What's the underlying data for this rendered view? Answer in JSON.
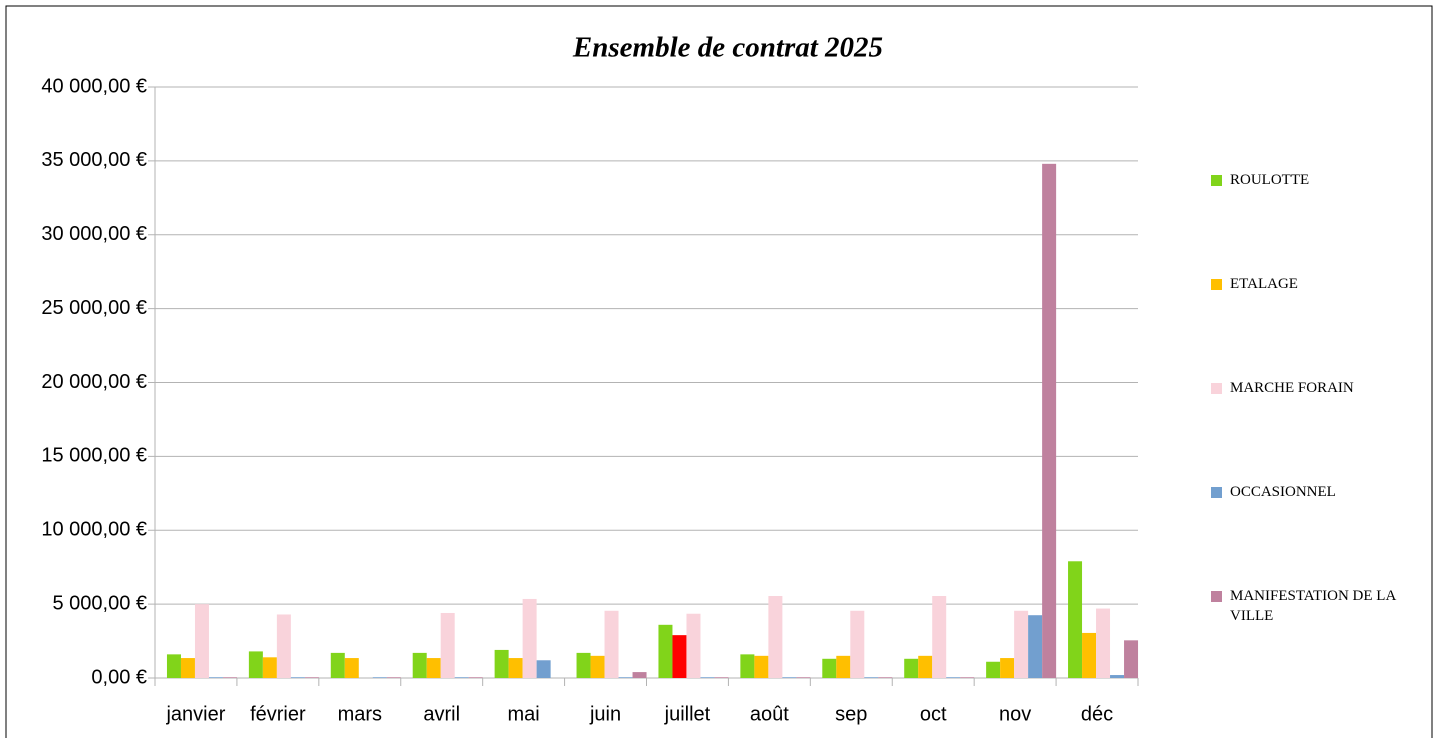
{
  "chart_data": {
    "type": "bar",
    "title": "Ensemble de contrat 2025",
    "categories": [
      "janvier",
      "février",
      "mars",
      "avril",
      "mai",
      "juin",
      "juillet",
      "août",
      "sep",
      "oct",
      "nov",
      "déc"
    ],
    "series": [
      {
        "name": "ROULOTTE",
        "color": "#81d41a",
        "values": [
          1600,
          1800,
          1700,
          1700,
          1900,
          1700,
          3600,
          1600,
          1300,
          1300,
          1100,
          7900
        ]
      },
      {
        "name": "ETALAGE",
        "color": "#ffbf00",
        "point_colors": {
          "6": "#ff0000"
        },
        "values": [
          1350,
          1400,
          1350,
          1350,
          1350,
          1500,
          2900,
          1500,
          1500,
          1500,
          1350,
          3050
        ]
      },
      {
        "name": "MARCHE FORAIN",
        "color": "#f9d3db",
        "values": [
          5000,
          4300,
          0,
          4400,
          5350,
          4550,
          4350,
          5550,
          4550,
          5550,
          4550,
          4700
        ]
      },
      {
        "name": "OCCASIONNEL",
        "color": "#729fcf",
        "values": [
          50,
          50,
          50,
          50,
          1200,
          50,
          50,
          50,
          50,
          50,
          4250,
          200
        ]
      },
      {
        "name": "MANIFESTATION DE LA VILLE",
        "color": "#bf819e",
        "values": [
          50,
          50,
          50,
          50,
          0,
          400,
          50,
          50,
          50,
          50,
          34800,
          2550
        ]
      }
    ],
    "ylim": [
      0,
      40000
    ],
    "yticks": [
      {
        "value": 0,
        "label": "0,00 €"
      },
      {
        "value": 5000,
        "label": "5 000,00 €"
      },
      {
        "value": 10000,
        "label": "10 000,00 €"
      },
      {
        "value": 15000,
        "label": "15 000,00 €"
      },
      {
        "value": 20000,
        "label": "20 000,00 €"
      },
      {
        "value": 25000,
        "label": "25 000,00 €"
      },
      {
        "value": 30000,
        "label": "30 000,00 €"
      },
      {
        "value": 35000,
        "label": "35 000,00 €"
      },
      {
        "value": 40000,
        "label": "40 000,00 €"
      }
    ],
    "grid": true,
    "legend": "right"
  }
}
